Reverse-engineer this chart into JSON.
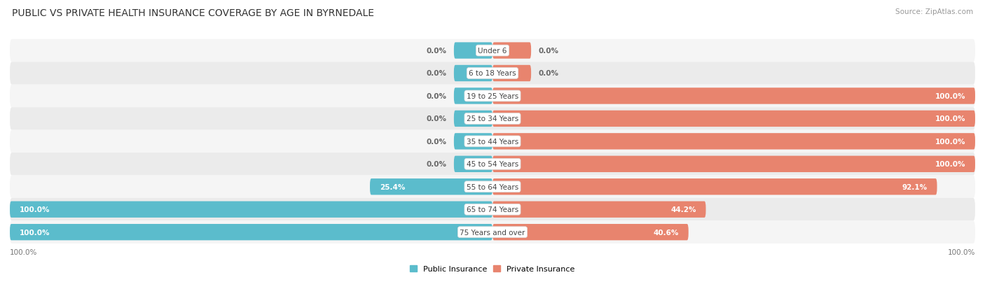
{
  "title": "PUBLIC VS PRIVATE HEALTH INSURANCE COVERAGE BY AGE IN BYRNEDALE",
  "source": "Source: ZipAtlas.com",
  "categories": [
    "Under 6",
    "6 to 18 Years",
    "19 to 25 Years",
    "25 to 34 Years",
    "35 to 44 Years",
    "45 to 54 Years",
    "55 to 64 Years",
    "65 to 74 Years",
    "75 Years and over"
  ],
  "public_values": [
    0.0,
    0.0,
    0.0,
    0.0,
    0.0,
    0.0,
    25.4,
    100.0,
    100.0
  ],
  "private_values": [
    0.0,
    0.0,
    100.0,
    100.0,
    100.0,
    100.0,
    92.1,
    44.2,
    40.6
  ],
  "public_color": "#5bbccc",
  "private_color": "#e8846e",
  "row_colors": [
    "#f5f5f5",
    "#ebebeb"
  ],
  "label_color_inside": "#ffffff",
  "label_color_outside": "#666666",
  "center_label_color": "#444444",
  "axis_max": 100.0,
  "stub_size": 8.0,
  "figsize": [
    14.06,
    4.14
  ],
  "dpi": 100,
  "title_fontsize": 10,
  "label_fontsize": 7.5,
  "category_fontsize": 7.5,
  "legend_fontsize": 8,
  "source_fontsize": 7.5
}
